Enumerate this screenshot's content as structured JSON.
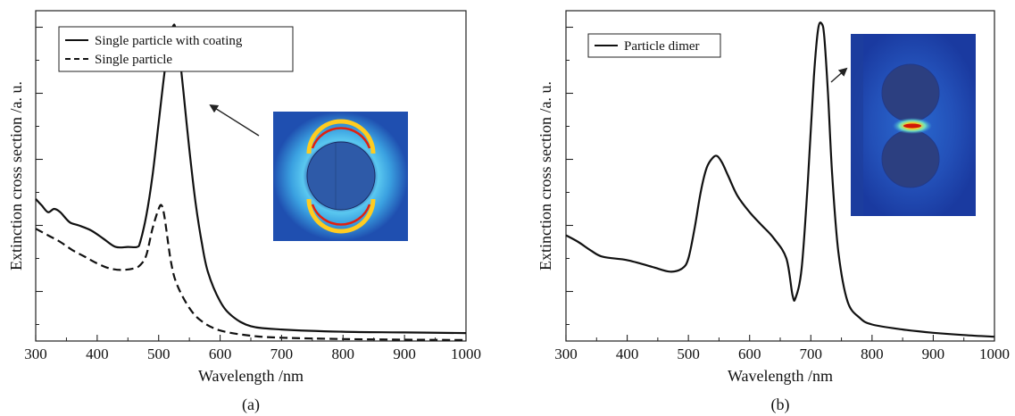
{
  "chart_data": [
    {
      "type": "line",
      "panel_label": "(a)",
      "xlabel": "Wavelength /nm",
      "ylabel": "Extinction cross section /a. u.",
      "x_ticks": [
        300,
        400,
        500,
        600,
        700,
        800,
        900,
        1000
      ],
      "xlim": [
        300,
        1000
      ],
      "ylim": [
        0,
        100
      ],
      "y_tick_values": [
        15,
        35,
        55,
        75,
        95
      ],
      "y_tick_labels_shown": false,
      "grid": false,
      "legend_position": "top-left",
      "series": [
        {
          "name": "Single particle with coating",
          "style": "solid",
          "x": [
            300,
            310,
            320,
            330,
            340,
            355,
            370,
            390,
            410,
            430,
            450,
            465,
            470,
            480,
            490,
            500,
            510,
            518,
            524,
            527,
            532,
            540,
            550,
            560,
            570,
            580,
            600,
            620,
            650,
            700,
            800,
            900,
            1000
          ],
          "y": [
            43,
            41,
            39,
            40,
            39,
            36,
            35,
            33.5,
            31,
            28.5,
            28.5,
            28.5,
            30,
            38,
            50,
            66,
            82,
            92,
            95.5,
            95,
            90,
            76,
            58,
            42,
            30,
            21,
            12,
            7.5,
            4.5,
            3.5,
            2.8,
            2.6,
            2.4
          ]
        },
        {
          "name": "Single particle",
          "style": "dashed",
          "x": [
            300,
            320,
            340,
            360,
            380,
            400,
            420,
            440,
            460,
            470,
            480,
            490,
            500,
            505,
            510,
            520,
            530,
            550,
            570,
            600,
            650,
            700,
            800,
            900,
            1000
          ],
          "y": [
            34,
            32,
            30,
            27.5,
            25.5,
            23.5,
            22,
            21.5,
            22,
            23,
            26,
            34,
            40,
            41,
            37,
            24,
            17,
            10,
            6,
            3.2,
            1.6,
            1.0,
            0.6,
            0.4,
            0.3
          ]
        }
      ],
      "inset": {
        "type": "field-map",
        "arrow_to_peak": true
      }
    },
    {
      "type": "line",
      "panel_label": "(b)",
      "xlabel": "Wavelength /nm",
      "ylabel": "Extinction cross section /a. u.",
      "x_ticks": [
        300,
        400,
        500,
        600,
        700,
        800,
        900,
        1000
      ],
      "xlim": [
        300,
        1000
      ],
      "ylim": [
        0,
        100
      ],
      "y_tick_values": [
        15,
        35,
        55,
        75,
        95
      ],
      "y_tick_labels_shown": false,
      "grid": false,
      "legend_position": "top-left",
      "series": [
        {
          "name": "Particle dimer",
          "style": "solid",
          "x": [
            300,
            320,
            340,
            360,
            400,
            440,
            470,
            490,
            500,
            510,
            520,
            530,
            540,
            547,
            555,
            565,
            580,
            600,
            620,
            640,
            660,
            670,
            675,
            685,
            695,
            705,
            712,
            718,
            722,
            728,
            735,
            745,
            760,
            780,
            800,
            850,
            900,
            950,
            1000
          ],
          "y": [
            32,
            30,
            27.5,
            25.5,
            24.5,
            22.5,
            21,
            22,
            25,
            34,
            45,
            52.5,
            55.5,
            56,
            54,
            50,
            44,
            39,
            35,
            31,
            25,
            14,
            13,
            22,
            48,
            80,
            94.5,
            96,
            92,
            75,
            50,
            27,
            12,
            7,
            5,
            3.5,
            2.5,
            1.8,
            1.3
          ]
        }
      ],
      "inset": {
        "type": "field-map",
        "arrow_to_peak": true
      }
    }
  ]
}
